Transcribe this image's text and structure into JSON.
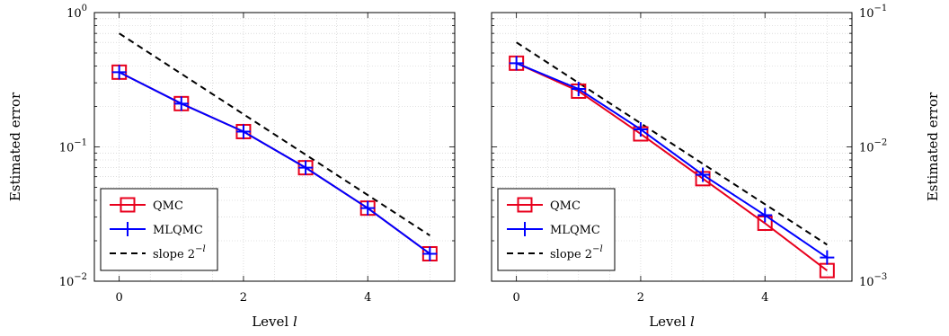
{
  "chart_data": [
    {
      "type": "line",
      "xlabel": "Level l",
      "ylabel": "Estimated error",
      "yscale": "log",
      "xlim": [
        -0.4,
        5.4
      ],
      "ylim": [
        0.01,
        1
      ],
      "xticks": [
        0,
        2,
        4
      ],
      "yticks": [
        {
          "value": 0.01,
          "base": "10",
          "exp": "−2"
        },
        {
          "value": 0.1,
          "base": "10",
          "exp": "−1"
        },
        {
          "value": 1,
          "base": "10",
          "exp": "0"
        }
      ],
      "grid": true,
      "legend_position": "bottom-left",
      "series": [
        {
          "name": "QMC",
          "color": "#e8001c",
          "marker": "square",
          "x": [
            0,
            1,
            2,
            3,
            4,
            5
          ],
          "y": [
            0.36,
            0.21,
            0.13,
            0.07,
            0.035,
            0.016
          ]
        },
        {
          "name": "MLQMC",
          "color": "#0000ff",
          "marker": "plus",
          "x": [
            0,
            1,
            2,
            3,
            4,
            5
          ],
          "y": [
            0.36,
            0.21,
            0.13,
            0.07,
            0.035,
            0.016
          ]
        },
        {
          "name": "slope 2",
          "name_exp": "−l",
          "color": "#000000",
          "dashed": true,
          "x": [
            0,
            5
          ],
          "y": [
            0.7,
            0.0219
          ]
        }
      ]
    },
    {
      "type": "line",
      "xlabel": "Level l",
      "ylabel": "Estimated error",
      "yaxis_position": "right",
      "yscale": "log",
      "xlim": [
        -0.4,
        5.4
      ],
      "ylim": [
        0.001,
        0.1
      ],
      "xticks": [
        0,
        2,
        4
      ],
      "yticks": [
        {
          "value": 0.001,
          "base": "10",
          "exp": "−3"
        },
        {
          "value": 0.01,
          "base": "10",
          "exp": "−2"
        },
        {
          "value": 0.1,
          "base": "10",
          "exp": "−1"
        }
      ],
      "grid": true,
      "legend_position": "bottom-left",
      "series": [
        {
          "name": "QMC",
          "color": "#e8001c",
          "marker": "square",
          "x": [
            0,
            1,
            2,
            3,
            4,
            5
          ],
          "y": [
            0.042,
            0.026,
            0.0125,
            0.0058,
            0.0027,
            0.0012
          ]
        },
        {
          "name": "MLQMC",
          "color": "#0000ff",
          "marker": "plus",
          "x": [
            0,
            1,
            2,
            3,
            4,
            5
          ],
          "y": [
            0.042,
            0.027,
            0.0135,
            0.0062,
            0.0031,
            0.0015
          ]
        },
        {
          "name": "slope 2",
          "name_exp": "−l",
          "color": "#000000",
          "dashed": true,
          "x": [
            0,
            5
          ],
          "y": [
            0.06,
            0.00187
          ]
        }
      ]
    }
  ]
}
